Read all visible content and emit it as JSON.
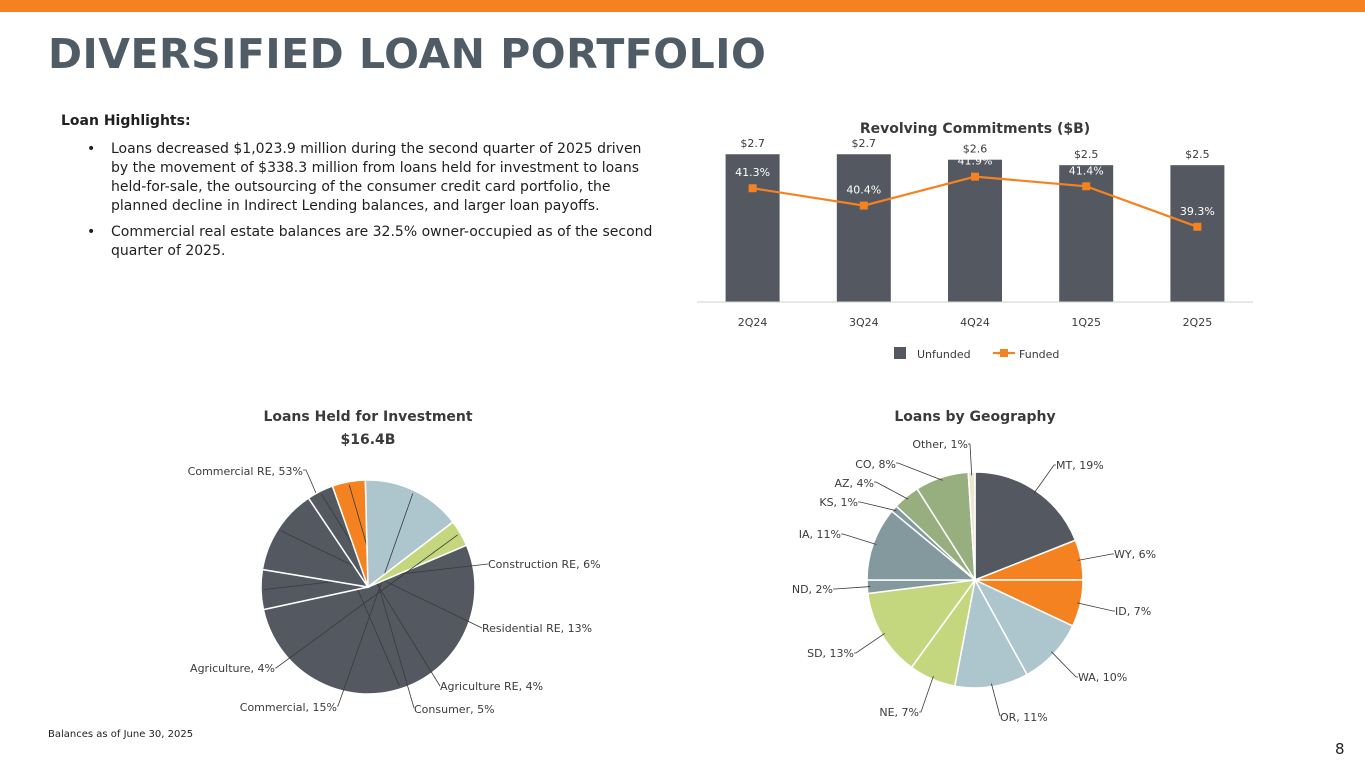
{
  "page": {
    "title": "DIVERSIFIED LOAN PORTFOLIO",
    "footnote": "Balances as of June 30, 2025",
    "page_number": "8",
    "colors": {
      "accent": "#f58220",
      "title": "#4f5c66",
      "bar": "#545861"
    }
  },
  "highlights": {
    "heading": "Loan Highlights:",
    "bullets": [
      "Loans decreased $1,023.9 million during the second quarter of 2025 driven by the movement of $338.3 million from loans held for investment to loans held-for-sale, the outsourcing of the consumer credit card portfolio, the planned decline in Indirect Lending balances, and larger loan payoffs.",
      "Commercial real estate balances are 32.5% owner-occupied as of the second quarter of 2025."
    ]
  },
  "chart_data": [
    {
      "type": "bar",
      "title": "Revolving Commitments ($B)",
      "categories": [
        "2Q24",
        "3Q24",
        "4Q24",
        "1Q25",
        "2Q25"
      ],
      "series": [
        {
          "name": "Unfunded",
          "kind": "bar",
          "values": [
            2.7,
            2.7,
            2.6,
            2.5,
            2.5
          ],
          "labels": [
            "$2.7",
            "$2.7",
            "$2.6",
            "$2.5",
            "$2.5"
          ],
          "color": "#545861"
        },
        {
          "name": "Funded",
          "kind": "line",
          "values": [
            41.3,
            40.4,
            41.9,
            41.4,
            39.3
          ],
          "labels": [
            "41.3%",
            "40.4%",
            "41.9%",
            "41.4%",
            "39.3%"
          ],
          "color": "#f58220"
        }
      ],
      "ylim": [
        0,
        2.96
      ],
      "y2lim": [
        35.4,
        43.8
      ],
      "legend": "bottom"
    },
    {
      "type": "pie",
      "title": "Loans Held for Investment",
      "subtitle": "$16.4B",
      "slices": [
        {
          "name": "Commercial RE",
          "value": 53,
          "label": "Commercial RE, 53%",
          "color": "#545861"
        },
        {
          "name": "Construction RE",
          "value": 6,
          "label": "Construction RE, 6%",
          "color": "#545861"
        },
        {
          "name": "Residential RE",
          "value": 13,
          "label": "Residential RE, 13%",
          "color": "#545861"
        },
        {
          "name": "Agriculture RE",
          "value": 4,
          "label": "Agriculture RE, 4%",
          "color": "#545861"
        },
        {
          "name": "Consumer",
          "value": 5,
          "label": "Consumer, 5%",
          "color": "#f58220"
        },
        {
          "name": "Commercial",
          "value": 15,
          "label": "Commercial, 15%",
          "color": "#adc5cc"
        },
        {
          "name": "Agriculture",
          "value": 4,
          "label": "Agriculture, 4%",
          "color": "#c4d77f"
        }
      ]
    },
    {
      "type": "pie",
      "title": "Loans by Geography",
      "slices": [
        {
          "name": "MT",
          "value": 19,
          "label": "MT, 19%",
          "color": "#545861"
        },
        {
          "name": "WY",
          "value": 6,
          "label": "WY, 6%",
          "color": "#f58220"
        },
        {
          "name": "ID",
          "value": 7,
          "label": "ID, 7%",
          "color": "#f58220"
        },
        {
          "name": "WA",
          "value": 10,
          "label": "WA, 10%",
          "color": "#adc5cc"
        },
        {
          "name": "OR",
          "value": 11,
          "label": "OR, 11%",
          "color": "#adc5cc"
        },
        {
          "name": "NE",
          "value": 7,
          "label": "NE, 7%",
          "color": "#c4d77f"
        },
        {
          "name": "SD",
          "value": 13,
          "label": "SD, 13%",
          "color": "#c4d77f"
        },
        {
          "name": "ND",
          "value": 2,
          "label": "ND, 2%",
          "color": "#84999d"
        },
        {
          "name": "IA",
          "value": 11,
          "label": "IA, 11%",
          "color": "#84999d"
        },
        {
          "name": "KS",
          "value": 1,
          "label": "KS, 1%",
          "color": "#84999d"
        },
        {
          "name": "AZ",
          "value": 4,
          "label": "AZ, 4%",
          "color": "#97ae7e"
        },
        {
          "name": "CO",
          "value": 8,
          "label": "CO, 8%",
          "color": "#97ae7e"
        },
        {
          "name": "Other",
          "value": 1,
          "label": "Other, 1%",
          "color": "#eee6cf"
        }
      ]
    }
  ]
}
